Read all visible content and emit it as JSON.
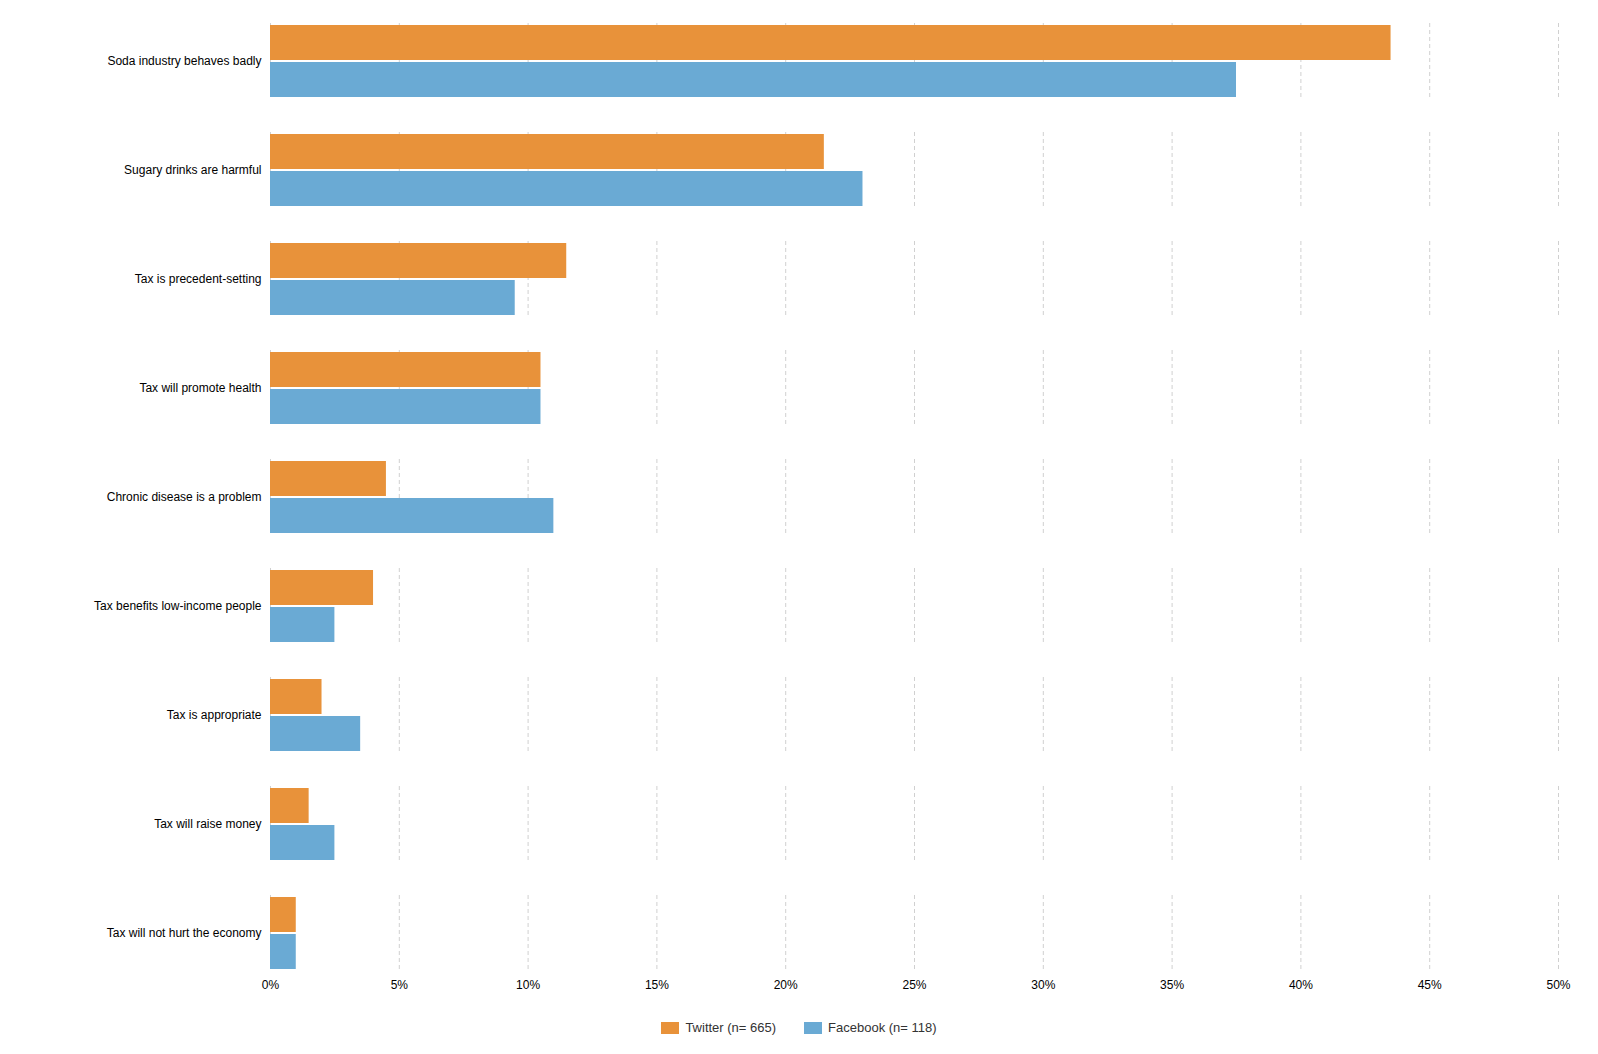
{
  "chart_data": {
    "type": "bar",
    "orientation": "horizontal",
    "categories": [
      "Soda industry behaves badly",
      "Sugary drinks are harmful",
      "Tax is precedent-setting",
      "Tax will promote health",
      "Chronic disease is a problem",
      "Tax benefits low-income people",
      "Tax is appropriate",
      "Tax will raise money",
      "Tax will not hurt the economy"
    ],
    "series": [
      {
        "name": "Twitter (n= 665)",
        "color": "#E8923A",
        "values": [
          43.5,
          21.5,
          11.5,
          10.5,
          4.5,
          4.0,
          2.0,
          1.5,
          1.0
        ]
      },
      {
        "name": "Facebook (n= 118)",
        "color": "#6AAAD4",
        "values": [
          37.5,
          23.0,
          9.5,
          10.5,
          11.0,
          2.5,
          3.5,
          2.5,
          1.0
        ]
      }
    ],
    "xlim": [
      0,
      50
    ],
    "xticks": [
      {
        "value": 0,
        "label": "0%"
      },
      {
        "value": 5,
        "label": "5%"
      },
      {
        "value": 10,
        "label": "10%"
      },
      {
        "value": 15,
        "label": "15%"
      },
      {
        "value": 20,
        "label": "20%"
      },
      {
        "value": 25,
        "label": "25%"
      },
      {
        "value": 30,
        "label": "30%"
      },
      {
        "value": 35,
        "label": "35%"
      },
      {
        "value": 40,
        "label": "40%"
      },
      {
        "value": 45,
        "label": "45%"
      },
      {
        "value": 50,
        "label": "50%"
      }
    ],
    "grid": true,
    "legend": "bottom"
  }
}
